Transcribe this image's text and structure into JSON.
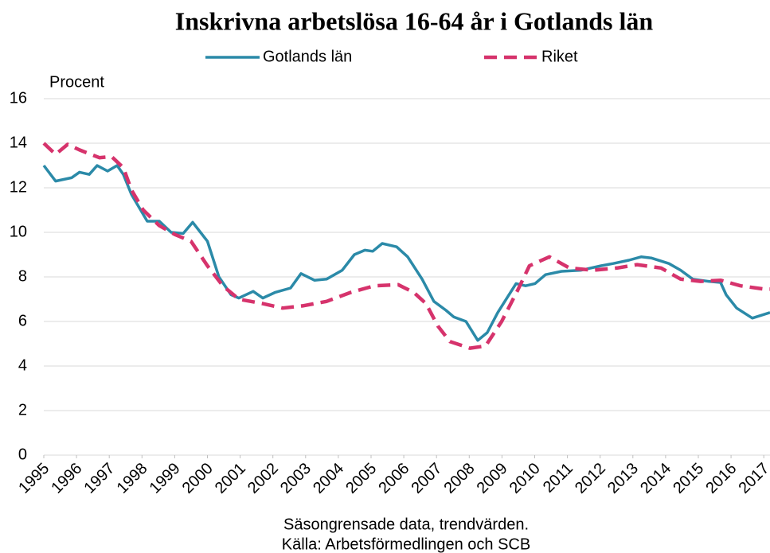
{
  "chart_data": {
    "type": "line",
    "title": "Inskrivna arbetslösa 16-64 år i Gotlands län",
    "y_label": "Procent",
    "notes": [
      "Säsongrensade data, trendvärden.",
      "Källa: Arbetsförmedlingen och SCB"
    ],
    "xlim": [
      1995,
      2017.19
    ],
    "xticks": [
      1995,
      1996,
      1997,
      1998,
      1999,
      2000,
      2001,
      2002,
      2003,
      2004,
      2005,
      2006,
      2007,
      2008,
      2009,
      2010,
      2011,
      2012,
      2013,
      2014,
      2015,
      2016,
      2017
    ],
    "ylim": [
      0,
      16
    ],
    "yticks": [
      0,
      2,
      4,
      6,
      8,
      10,
      12,
      14,
      16
    ],
    "grid": true,
    "series": [
      {
        "name": "Gotlands län",
        "color": "#2b8aa8",
        "dashed": false,
        "x": [
          1995.0,
          1995.36,
          1995.85,
          1996.09,
          1996.39,
          1996.63,
          1996.95,
          1997.24,
          1997.43,
          1997.68,
          1998.16,
          1998.53,
          1998.89,
          1999.26,
          1999.55,
          2000.0,
          2000.35,
          2000.72,
          2000.96,
          2001.4,
          2001.69,
          2002.06,
          2002.54,
          2002.86,
          2003.27,
          2003.64,
          2004.12,
          2004.49,
          2004.81,
          2005.05,
          2005.34,
          2005.78,
          2006.12,
          2006.56,
          2006.92,
          2007.29,
          2007.53,
          2007.9,
          2008.26,
          2008.55,
          2008.87,
          2009.43,
          2009.72,
          2010.01,
          2010.33,
          2010.82,
          2011.42,
          2012.03,
          2012.4,
          2012.88,
          2013.25,
          2013.56,
          2014.1,
          2014.46,
          2014.83,
          2015.32,
          2015.68,
          2015.85,
          2016.17,
          2016.65,
          2017.19
        ],
        "values": [
          13.0,
          12.3,
          12.45,
          12.7,
          12.6,
          13.0,
          12.75,
          13.0,
          12.6,
          11.7,
          10.5,
          10.5,
          10.0,
          9.95,
          10.45,
          9.6,
          8.0,
          7.2,
          7.05,
          7.35,
          7.05,
          7.3,
          7.5,
          8.15,
          7.85,
          7.9,
          8.3,
          9.0,
          9.2,
          9.15,
          9.5,
          9.35,
          8.9,
          7.9,
          6.9,
          6.5,
          6.2,
          6.0,
          5.15,
          5.5,
          6.4,
          7.7,
          7.6,
          7.7,
          8.1,
          8.25,
          8.3,
          8.5,
          8.6,
          8.75,
          8.9,
          8.85,
          8.6,
          8.3,
          7.9,
          7.8,
          7.75,
          7.2,
          6.6,
          6.15,
          6.4
        ]
      },
      {
        "name": "Riket",
        "color": "#d6336c",
        "dashed": true,
        "x": [
          1995.0,
          1995.36,
          1995.73,
          1996.09,
          1996.7,
          1997.07,
          1997.43,
          1997.68,
          1998.04,
          1998.53,
          1999.01,
          1999.5,
          2000.0,
          2000.47,
          2000.96,
          2001.69,
          2002.3,
          2002.91,
          2003.64,
          2004.37,
          2005.1,
          2005.83,
          2006.31,
          2006.68,
          2007.04,
          2007.41,
          2008.02,
          2008.5,
          2008.99,
          2009.48,
          2009.84,
          2010.45,
          2011.06,
          2011.79,
          2012.52,
          2013.13,
          2013.86,
          2014.46,
          2015.07,
          2015.68,
          2016.29,
          2017.02,
          2017.19
        ],
        "values": [
          14.0,
          13.5,
          13.95,
          13.7,
          13.35,
          13.4,
          12.9,
          11.9,
          11.0,
          10.3,
          9.9,
          9.6,
          8.5,
          7.6,
          7.0,
          6.8,
          6.6,
          6.7,
          6.9,
          7.3,
          7.6,
          7.65,
          7.3,
          6.8,
          5.8,
          5.1,
          4.8,
          4.9,
          6.0,
          7.4,
          8.5,
          8.9,
          8.4,
          8.3,
          8.4,
          8.55,
          8.4,
          7.9,
          7.8,
          7.85,
          7.6,
          7.45,
          7.45
        ]
      }
    ]
  }
}
